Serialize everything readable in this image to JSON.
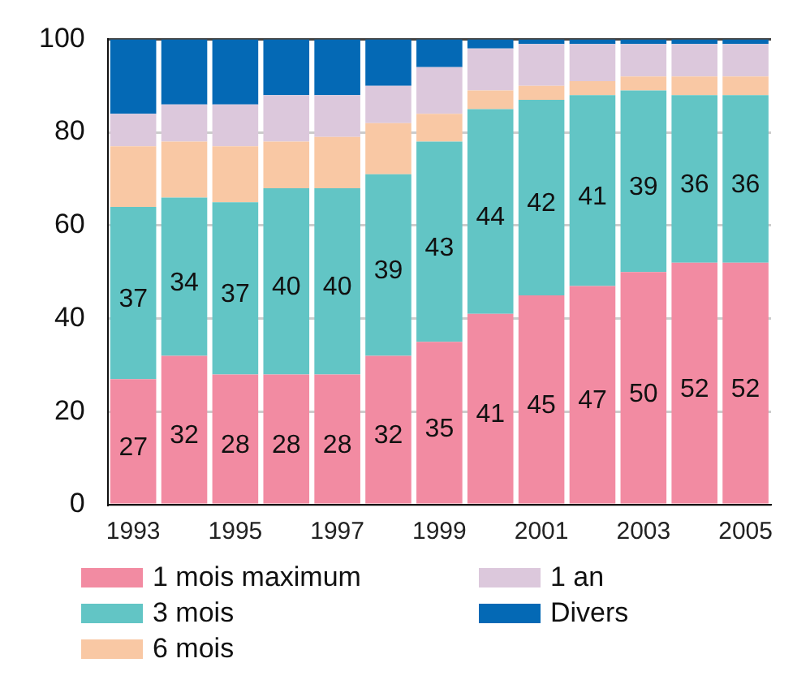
{
  "chart_data": {
    "type": "bar",
    "stacked": true,
    "categories": [
      "1993",
      null,
      "1995",
      null,
      "1997",
      null,
      "1999",
      null,
      "2001",
      null,
      "2003",
      null,
      "2005"
    ],
    "series": [
      {
        "name": "1 mois maximum",
        "color": "#f28ba2",
        "values": [
          27,
          32,
          28,
          28,
          28,
          32,
          35,
          41,
          45,
          47,
          50,
          52,
          52
        ],
        "value_labels": [
          "27",
          "32",
          "28",
          "28",
          "28",
          "32",
          "35",
          "41",
          "45",
          "47",
          "50",
          "52",
          "52"
        ]
      },
      {
        "name": "3 mois",
        "color": "#62c5c5",
        "values": [
          37,
          34,
          37,
          40,
          40,
          39,
          43,
          44,
          42,
          41,
          39,
          36,
          36
        ],
        "value_labels": [
          "37",
          "34",
          "37",
          "40",
          "40",
          "39",
          "43",
          "44",
          "42",
          "41",
          "39",
          "36",
          "36"
        ]
      },
      {
        "name": "6 mois",
        "color": "#f9c8a4",
        "values": [
          13,
          12,
          12,
          10,
          11,
          11,
          6,
          4,
          3,
          3,
          3,
          4,
          4
        ]
      },
      {
        "name": "1 an",
        "color": "#dcc8dc",
        "values": [
          7,
          8,
          9,
          10,
          9,
          8,
          10,
          9,
          9,
          8,
          7,
          7,
          7
        ]
      },
      {
        "name": "Divers",
        "color": "#0469b5",
        "values": [
          16,
          14,
          14,
          12,
          12,
          10,
          6,
          2,
          1,
          1,
          1,
          1,
          1
        ]
      }
    ],
    "ylim": [
      0,
      100
    ],
    "yticks": [
      0,
      20,
      40,
      60,
      80,
      100
    ],
    "grid": "y",
    "legend": "bottom"
  }
}
